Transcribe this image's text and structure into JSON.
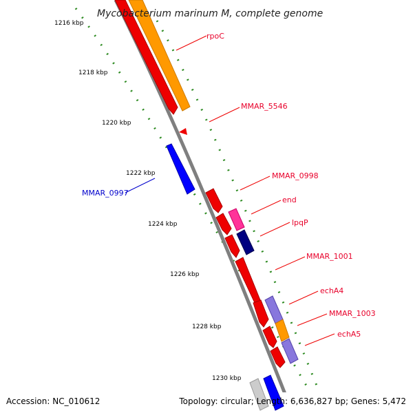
{
  "title": "Mycobacterium marinum M, complete genome",
  "footer": {
    "accession": "Accession: NC_010612",
    "summary": "Topology: circular; Length: 6,636,827 bp; Genes: 5,472"
  },
  "ticks": [
    "1216 kbp",
    "1218 kbp",
    "1220 kbp",
    "1222 kbp",
    "1224 kbp",
    "1226 kbp",
    "1228 kbp",
    "1230 kbp"
  ],
  "colors": {
    "backbone": "#7f7f7f",
    "tick_dots": "#2e8b22",
    "forward_label": "#e8002a",
    "reverse_label": "#0000cc",
    "red_gene": "#ee0000",
    "orange_gene": "#ff9900",
    "blue_gene": "#0000ff",
    "pink_gene": "#ff3399",
    "navy_gene": "#000080",
    "purple_gene": "#8877dd",
    "grey_gene": "#cccccc"
  },
  "gene_labels": [
    {
      "text": "rpoC",
      "strand": "forward"
    },
    {
      "text": "MMAR_5546",
      "strand": "forward"
    },
    {
      "text": "MMAR_0998",
      "strand": "forward"
    },
    {
      "text": "end",
      "strand": "forward"
    },
    {
      "text": "lpqP",
      "strand": "forward"
    },
    {
      "text": "MMAR_1001",
      "strand": "forward"
    },
    {
      "text": "echA4",
      "strand": "forward"
    },
    {
      "text": "MMAR_1003",
      "strand": "forward"
    },
    {
      "text": "echA5",
      "strand": "forward"
    },
    {
      "text": "MMAR_0997",
      "strand": "reverse"
    }
  ]
}
